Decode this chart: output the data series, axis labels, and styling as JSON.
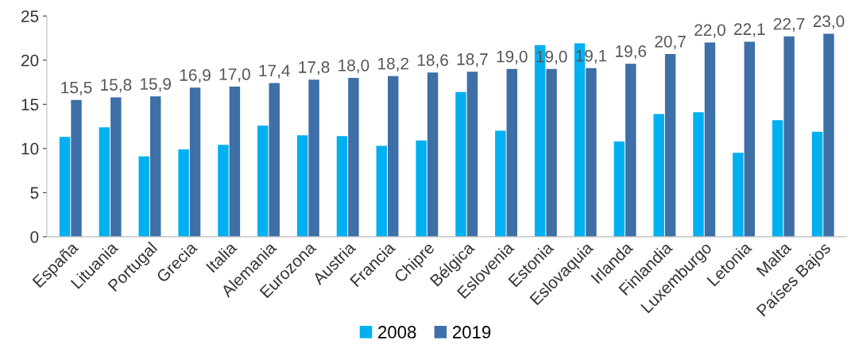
{
  "chart_data": {
    "type": "bar",
    "categories": [
      "España",
      "Lituania",
      "Portugal",
      "Grecia",
      "Italia",
      "Alemania",
      "Eurozona",
      "Austria",
      "Francia",
      "Chipre",
      "Bélgica",
      "Eslovenia",
      "Estonia",
      "Eslovaquia",
      "Irlanda",
      "Finlandia",
      "Luxemburgo",
      "Letonia",
      "Malta",
      "Países Bajos"
    ],
    "series": [
      {
        "name": "2008",
        "color": "#00b0f0",
        "values": [
          11.3,
          12.4,
          9.1,
          9.9,
          10.4,
          12.6,
          11.5,
          11.4,
          10.3,
          10.9,
          16.4,
          12.0,
          21.7,
          21.9,
          10.8,
          13.9,
          14.1,
          9.5,
          13.2,
          11.9
        ]
      },
      {
        "name": "2019",
        "color": "#3e6fa6",
        "values": [
          15.5,
          15.8,
          15.9,
          16.9,
          17.0,
          17.4,
          17.8,
          18.0,
          18.2,
          18.6,
          18.7,
          19.0,
          19.0,
          19.1,
          19.6,
          20.7,
          22.0,
          22.1,
          22.7,
          23.0
        ],
        "value_labels": [
          "15,5",
          "15,8",
          "15,9",
          "16,9",
          "17,0",
          "17,4",
          "17,8",
          "18,0",
          "18,2",
          "18,6",
          "18,7",
          "19,0",
          "19,0",
          "19,1",
          "19,6",
          "20,7",
          "22,0",
          "22,1",
          "22,7",
          "23,0"
        ]
      }
    ],
    "ylim": [
      0,
      25
    ],
    "yticks": [
      0,
      5,
      10,
      15,
      20,
      25
    ],
    "grid": false,
    "legend": "bottom"
  }
}
